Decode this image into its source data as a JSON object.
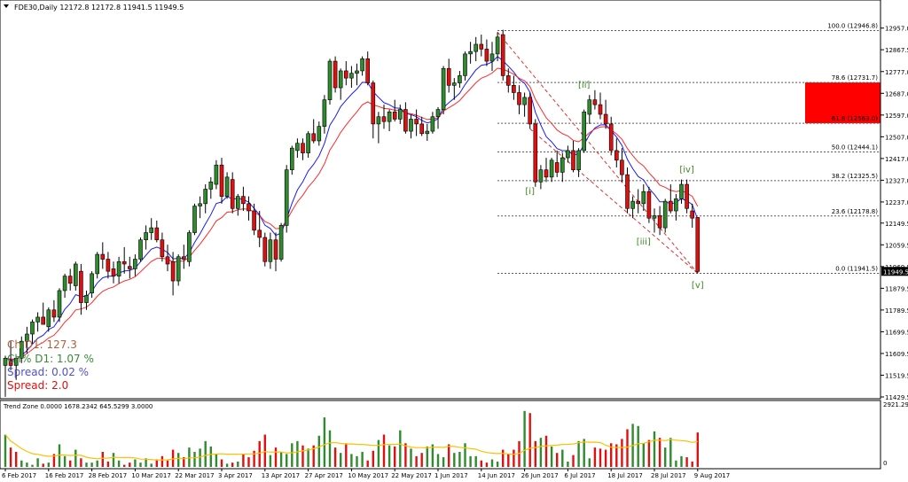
{
  "header": {
    "symbol_line": "FDE30,Daily  12172.8 12172.8 11941.5 11949.5"
  },
  "indicators": {
    "ch_d1": "Ch D1: 127.3",
    "ch_pct_d1": "Ch% D1: 1.07 %",
    "spread_pct": "Spread: 0.02 %",
    "spread": "Spread: 2.0"
  },
  "colors": {
    "bull": "#2e8b2e",
    "bear": "#e01010",
    "ma_blue": "#1a1aff",
    "ma_red": "#ff2a2a",
    "fib_zone": "#ff0000",
    "wave_label": "#3a8a1a",
    "volume_avg": "#ffc000"
  },
  "chart_data": [
    {
      "type": "candlestick",
      "title": "FDE30,Daily",
      "ylim": [
        11429.5,
        13000
      ],
      "y_ticks": [
        12957.0,
        12867.5,
        12777.0,
        12687.0,
        12597.0,
        12507.0,
        12417.0,
        12327.0,
        12237.0,
        12149.5,
        12059.5,
        11969.5,
        11879.5,
        11789.5,
        11699.5,
        11609.5,
        11519.5,
        11429.5
      ],
      "last_price": "11949.5",
      "x_tick_labels": [
        "6 Feb 2017",
        "16 Feb 2017",
        "28 Feb 2017",
        "10 Mar 2017",
        "22 Mar 2017",
        "3 Apr 2017",
        "13 Apr 2017",
        "27 Apr 2017",
        "10 May 2017",
        "22 May 2017",
        "1 Jun 2017",
        "14 Jun 2017",
        "26 Jun 2017",
        "6 Jul 2017",
        "18 Jul 2017",
        "28 Jul 2017",
        "9 Aug 2017"
      ],
      "x_tick_index": [
        0,
        8,
        16,
        24,
        32,
        40,
        48,
        56,
        64,
        72,
        80,
        88,
        96,
        104,
        112,
        120,
        128
      ],
      "candles": [
        [
          11560,
          11600,
          11430,
          11590
        ],
        [
          11580,
          11660,
          11540,
          11560
        ],
        [
          11560,
          11600,
          11500,
          11590
        ],
        [
          11590,
          11680,
          11570,
          11660
        ],
        [
          11660,
          11720,
          11610,
          11690
        ],
        [
          11690,
          11750,
          11650,
          11740
        ],
        [
          11740,
          11780,
          11700,
          11760
        ],
        [
          11760,
          11820,
          11730,
          11730
        ],
        [
          11720,
          11800,
          11700,
          11790
        ],
        [
          11790,
          11830,
          11740,
          11760
        ],
        [
          11760,
          11880,
          11740,
          11870
        ],
        [
          11870,
          11940,
          11840,
          11930
        ],
        [
          11930,
          11960,
          11870,
          11900
        ],
        [
          11890,
          11990,
          11870,
          11980
        ],
        [
          11950,
          11980,
          11770,
          11820
        ],
        [
          11820,
          11870,
          11790,
          11850
        ],
        [
          11860,
          11950,
          11840,
          11940
        ],
        [
          11940,
          12030,
          11920,
          12020
        ],
        [
          12020,
          12070,
          11960,
          12000
        ],
        [
          12000,
          12030,
          11920,
          11950
        ],
        [
          11960,
          11990,
          11900,
          11930
        ],
        [
          11930,
          12010,
          11900,
          11990
        ],
        [
          11990,
          12050,
          11940,
          11980
        ],
        [
          11970,
          12010,
          11920,
          11960
        ],
        [
          11960,
          12020,
          11930,
          12000
        ],
        [
          12000,
          12090,
          11990,
          12080
        ],
        [
          12080,
          12140,
          12040,
          12110
        ],
        [
          12110,
          12170,
          12080,
          12130
        ],
        [
          12130,
          12160,
          12070,
          12080
        ],
        [
          12080,
          12110,
          11990,
          12010
        ],
        [
          12010,
          12060,
          11950,
          11980
        ],
        [
          11990,
          12030,
          11850,
          11910
        ],
        [
          11910,
          12020,
          11890,
          12010
        ],
        [
          12010,
          12060,
          11960,
          12000
        ],
        [
          11990,
          12120,
          11970,
          12110
        ],
        [
          12110,
          12230,
          12100,
          12220
        ],
        [
          12220,
          12260,
          12170,
          12230
        ],
        [
          12230,
          12310,
          12190,
          12290
        ],
        [
          12290,
          12340,
          12250,
          12320
        ],
        [
          12310,
          12410,
          12290,
          12390
        ],
        [
          12390,
          12420,
          12230,
          12260
        ],
        [
          12260,
          12360,
          12250,
          12340
        ],
        [
          12330,
          12360,
          12190,
          12210
        ],
        [
          12210,
          12270,
          12180,
          12260
        ],
        [
          12260,
          12300,
          12200,
          12230
        ],
        [
          12230,
          12260,
          12160,
          12200
        ],
        [
          12200,
          12230,
          12100,
          12120
        ],
        [
          12120,
          12200,
          12050,
          12090
        ],
        [
          12090,
          12110,
          11970,
          11990
        ],
        [
          11990,
          12110,
          11960,
          12080
        ],
        [
          12080,
          12110,
          11950,
          12000
        ],
        [
          12000,
          12150,
          11990,
          12140
        ],
        [
          12140,
          12390,
          12110,
          12370
        ],
        [
          12370,
          12470,
          12350,
          12460
        ],
        [
          12450,
          12500,
          12420,
          12480
        ],
        [
          12480,
          12500,
          12410,
          12440
        ],
        [
          12440,
          12530,
          12420,
          12520
        ],
        [
          12520,
          12580,
          12480,
          12490
        ],
        [
          12490,
          12570,
          12470,
          12550
        ],
        [
          12550,
          12680,
          12520,
          12660
        ],
        [
          12660,
          12830,
          12640,
          12820
        ],
        [
          12820,
          12840,
          12690,
          12710
        ],
        [
          12710,
          12790,
          12660,
          12780
        ],
        [
          12780,
          12820,
          12720,
          12750
        ],
        [
          12750,
          12800,
          12710,
          12770
        ],
        [
          12770,
          12810,
          12720,
          12780
        ],
        [
          12780,
          12840,
          12760,
          12830
        ],
        [
          12830,
          12860,
          12720,
          12730
        ],
        [
          12730,
          12740,
          12500,
          12560
        ],
        [
          12560,
          12610,
          12480,
          12590
        ],
        [
          12590,
          12640,
          12540,
          12570
        ],
        [
          12570,
          12620,
          12530,
          12610
        ],
        [
          12610,
          12660,
          12570,
          12580
        ],
        [
          12580,
          12640,
          12560,
          12620
        ],
        [
          12620,
          12650,
          12520,
          12530
        ],
        [
          12530,
          12600,
          12500,
          12580
        ],
        [
          12580,
          12620,
          12510,
          12560
        ],
        [
          12560,
          12590,
          12510,
          12520
        ],
        [
          12520,
          12560,
          12490,
          12530
        ],
        [
          12530,
          12610,
          12520,
          12590
        ],
        [
          12590,
          12630,
          12540,
          12620
        ],
        [
          12620,
          12800,
          12600,
          12790
        ],
        [
          12790,
          12830,
          12690,
          12720
        ],
        [
          12720,
          12750,
          12660,
          12730
        ],
        [
          12730,
          12780,
          12710,
          12760
        ],
        [
          12760,
          12860,
          12740,
          12850
        ],
        [
          12850,
          12900,
          12810,
          12860
        ],
        [
          12860,
          12920,
          12820,
          12890
        ],
        [
          12890,
          12930,
          12840,
          12870
        ],
        [
          12870,
          12910,
          12800,
          12820
        ],
        [
          12820,
          12900,
          12780,
          12850
        ],
        [
          12850,
          12940,
          12820,
          12920
        ],
        [
          12930,
          12950,
          12740,
          12760
        ],
        [
          12760,
          12790,
          12690,
          12720
        ],
        [
          12720,
          12760,
          12660,
          12690
        ],
        [
          12690,
          12720,
          12600,
          12640
        ],
        [
          12640,
          12690,
          12590,
          12670
        ],
        [
          12670,
          12690,
          12540,
          12560
        ],
        [
          12560,
          12580,
          12300,
          12320
        ],
        [
          12320,
          12390,
          12290,
          12370
        ],
        [
          12370,
          12420,
          12320,
          12340
        ],
        [
          12340,
          12420,
          12320,
          12410
        ],
        [
          12400,
          12450,
          12340,
          12360
        ],
        [
          12360,
          12440,
          12320,
          12420
        ],
        [
          12420,
          12470,
          12400,
          12450
        ],
        [
          12450,
          12490,
          12360,
          12370
        ],
        [
          12370,
          12460,
          12340,
          12450
        ],
        [
          12450,
          12620,
          12440,
          12610
        ],
        [
          12600,
          12680,
          12560,
          12660
        ],
        [
          12660,
          12700,
          12620,
          12640
        ],
        [
          12640,
          12690,
          12580,
          12600
        ],
        [
          12600,
          12660,
          12540,
          12560
        ],
        [
          12560,
          12590,
          12430,
          12450
        ],
        [
          12450,
          12500,
          12380,
          12410
        ],
        [
          12410,
          12460,
          12320,
          12350
        ],
        [
          12350,
          12380,
          12190,
          12210
        ],
        [
          12210,
          12260,
          12170,
          12240
        ],
        [
          12240,
          12290,
          12190,
          12230
        ],
        [
          12230,
          12310,
          12200,
          12280
        ],
        [
          12280,
          12300,
          12150,
          12170
        ],
        [
          12170,
          12210,
          12110,
          12180
        ],
        [
          12180,
          12220,
          12100,
          12130
        ],
        [
          12130,
          12250,
          12110,
          12240
        ],
        [
          12240,
          12310,
          12190,
          12200
        ],
        [
          12200,
          12270,
          12160,
          12250
        ],
        [
          12250,
          12330,
          12230,
          12310
        ],
        [
          12310,
          12330,
          12190,
          12210
        ],
        [
          12200,
          12230,
          12130,
          12170
        ],
        [
          12172.8,
          12172.8,
          11941.5,
          11949.5
        ]
      ],
      "moving_averages": [
        {
          "color": "blue",
          "period": 8
        },
        {
          "color": "red",
          "period": 14
        }
      ],
      "fibonacci_levels": [
        {
          "label": "100.0 (12946.8)",
          "value": 12946.8
        },
        {
          "label": "78.6 (12731.7)",
          "value": 12731.7
        },
        {
          "label": "61.8 (12563.0)",
          "value": 12563.0
        },
        {
          "label": "50.0 (12444.1)",
          "value": 12444.1
        },
        {
          "label": "38.2 (12325.5)",
          "value": 12325.5
        },
        {
          "label": "23.6 (12178.8)",
          "value": 12178.8
        },
        {
          "label": "0.0 (11941.5)",
          "value": 11941.5
        }
      ],
      "fib_zone": {
        "from": 12563.0,
        "to": 12731.7
      },
      "wave_labels": [
        {
          "text": "[i]",
          "index": 97,
          "value": 12270
        },
        {
          "text": "[ii]",
          "index": 107,
          "value": 12710
        },
        {
          "text": "[iii]",
          "index": 118,
          "value": 12060
        },
        {
          "text": "[iv]",
          "index": 126,
          "value": 12360
        },
        {
          "text": "[v]",
          "index": 128,
          "value": 11880
        }
      ]
    },
    {
      "type": "bar",
      "title": "Trend Zone 0.0000 1678.2342 645.5299 3.0000",
      "ylim": [
        0,
        2921.29
      ],
      "y_ticks": [
        "2921.29",
        "0"
      ],
      "values": [
        1500,
        900,
        700,
        300,
        200,
        100,
        400,
        150,
        200,
        600,
        1050,
        500,
        300,
        800,
        400,
        200,
        200,
        300,
        700,
        250,
        650,
        300,
        100,
        200,
        350,
        200,
        400,
        150,
        350,
        500,
        300,
        800,
        650,
        450,
        900,
        700,
        850,
        1200,
        950,
        600,
        350,
        150,
        200,
        250,
        600,
        450,
        750,
        1200,
        1500,
        550,
        900,
        700,
        600,
        1100,
        1200,
        1000,
        850,
        1000,
        1450,
        2300,
        1700,
        900,
        650,
        1100,
        600,
        500,
        700,
        300,
        750,
        1250,
        1500,
        1000,
        950,
        1700,
        1100,
        850,
        500,
        650,
        950,
        1050,
        600,
        450,
        1050,
        650,
        700,
        1100,
        500,
        500,
        300,
        200,
        350,
        250,
        800,
        600,
        800,
        1200,
        2600,
        2500,
        1200,
        1350,
        1450,
        950,
        650,
        800,
        250,
        550,
        1200,
        1300,
        400,
        900,
        850,
        800,
        1100,
        1050,
        1300,
        1750,
        2000,
        1900,
        1100,
        1250,
        1650,
        1350,
        900,
        1350,
        300,
        500,
        450,
        250,
        1600
      ],
      "direction": [
        "bull",
        "bear",
        "bear",
        "bull",
        "bull",
        "bull",
        "bull",
        "bear",
        "bull",
        "bear",
        "bull",
        "bull",
        "bear",
        "bull",
        "bear",
        "bull",
        "bull",
        "bull",
        "bear",
        "bear",
        "bull",
        "bull",
        "bear",
        "bear",
        "bull",
        "bull",
        "bull",
        "bull",
        "bear",
        "bear",
        "bear",
        "bear",
        "bull",
        "bear",
        "bull",
        "bull",
        "bull",
        "bull",
        "bull",
        "bull",
        "bear",
        "bull",
        "bear",
        "bull",
        "bear",
        "bear",
        "bear",
        "bear",
        "bear",
        "bull",
        "bear",
        "bull",
        "bull",
        "bull",
        "bull",
        "bear",
        "bull",
        "bear",
        "bull",
        "bull",
        "bull",
        "bear",
        "bull",
        "bear",
        "bull",
        "bull",
        "bull",
        "bear",
        "bear",
        "bull",
        "bear",
        "bull",
        "bear",
        "bull",
        "bear",
        "bull",
        "bear",
        "bear",
        "bull",
        "bull",
        "bull",
        "bull",
        "bear",
        "bull",
        "bull",
        "bull",
        "bull",
        "bull",
        "bear",
        "bear",
        "bull",
        "bull",
        "bear",
        "bear",
        "bear",
        "bear",
        "bull",
        "bear",
        "bear",
        "bull",
        "bear",
        "bull",
        "bear",
        "bull",
        "bull",
        "bear",
        "bull",
        "bull",
        "bull",
        "bear",
        "bear",
        "bear",
        "bear",
        "bear",
        "bear",
        "bear",
        "bull",
        "bull",
        "bull",
        "bear",
        "bull",
        "bear",
        "bull",
        "bull",
        "bull",
        "bull",
        "bear",
        "bear",
        "bear"
      ],
      "average_line": "moving average of bar values"
    }
  ]
}
